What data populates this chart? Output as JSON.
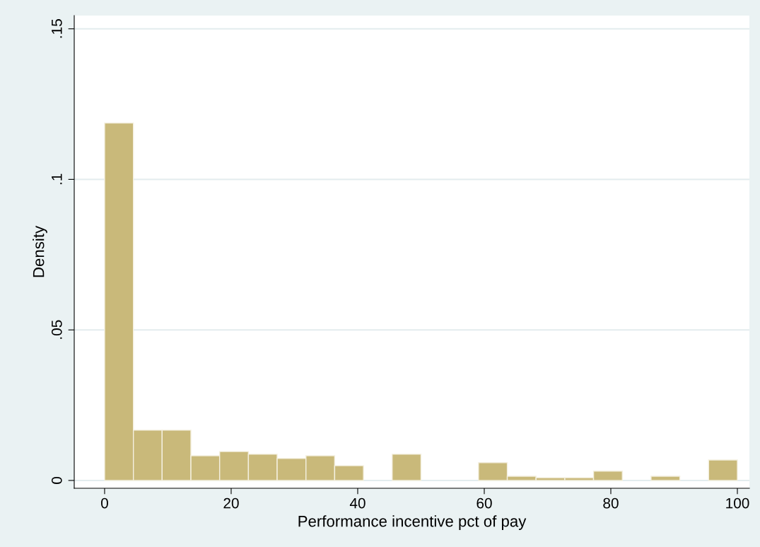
{
  "chart_data": {
    "type": "histogram",
    "xlabel": "Performance incentive pct of pay",
    "ylabel": "Density",
    "bins": [
      0,
      4.55,
      9.09,
      13.64,
      18.18,
      22.73,
      27.27,
      31.82,
      36.36,
      40.91,
      45.45,
      50,
      54.55,
      59.09,
      63.64,
      68.18,
      72.73,
      77.27,
      81.82,
      86.36,
      90.91,
      95.45,
      100
    ],
    "values": [
      0.1187,
      0.0167,
      0.0167,
      0.0082,
      0.0096,
      0.0087,
      0.0073,
      0.0082,
      0.0049,
      0,
      0.0087,
      0,
      0,
      0.0059,
      0.0014,
      0.0009,
      0.0009,
      0.0031,
      0,
      0.0014,
      0,
      0.0068
    ],
    "color": "#c9b97a",
    "xlim": [
      -4.8,
      101.9
    ],
    "ylim": [
      -0.0026,
      0.1544
    ],
    "xticks": [
      0,
      20,
      40,
      60,
      80,
      100
    ],
    "yticks": [
      {
        "value": 0,
        "label": "0"
      },
      {
        "value": 0.05,
        "label": ".05"
      },
      {
        "value": 0.1,
        "label": ".1"
      },
      {
        "value": 0.15,
        "label": ".15"
      }
    ],
    "grid": "y"
  }
}
